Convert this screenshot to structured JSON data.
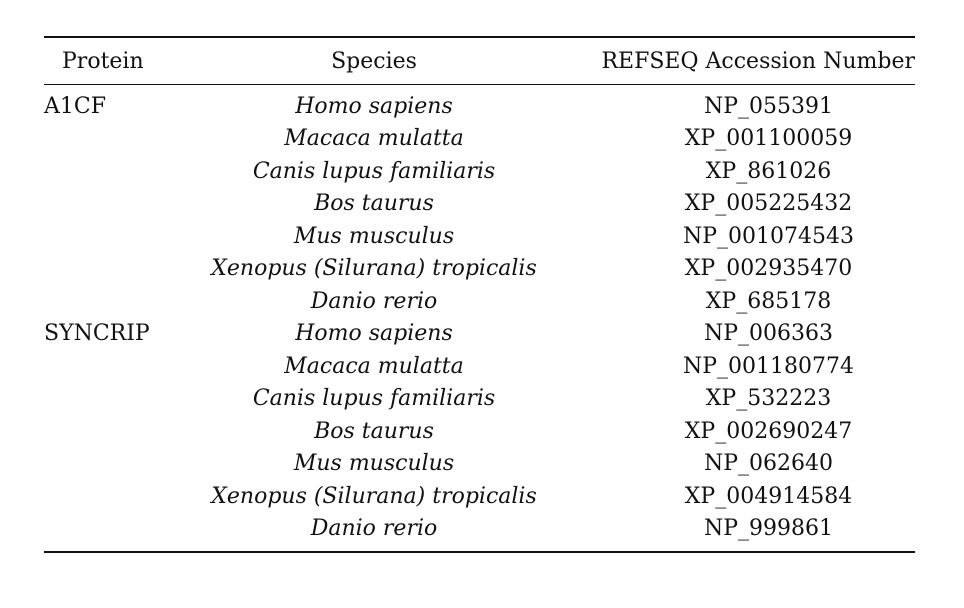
{
  "table": {
    "headers": [
      "Protein",
      "Species",
      "REFSEQ Accession Number"
    ],
    "rows": [
      {
        "protein": "A1CF",
        "species": "Homo sapiens",
        "accession": "NP_055391"
      },
      {
        "protein": "",
        "species": "Macaca mulatta",
        "accession": "XP_001100059"
      },
      {
        "protein": "",
        "species": "Canis lupus familiaris",
        "accession": "XP_861026"
      },
      {
        "protein": "",
        "species": "Bos taurus",
        "accession": "XP_005225432"
      },
      {
        "protein": "",
        "species": "Mus musculus",
        "accession": "NP_001074543"
      },
      {
        "protein": "",
        "species": "Xenopus (Silurana) tropicalis",
        "accession": "XP_002935470"
      },
      {
        "protein": "",
        "species": "Danio rerio",
        "accession": "XP_685178"
      },
      {
        "protein": "SYNCRIP",
        "species": "Homo sapiens",
        "accession": "NP_006363"
      },
      {
        "protein": "",
        "species": "Macaca mulatta",
        "accession": "NP_001180774"
      },
      {
        "protein": "",
        "species": "Canis lupus familiaris",
        "accession": "XP_532223"
      },
      {
        "protein": "",
        "species": "Bos taurus",
        "accession": "XP_002690247"
      },
      {
        "protein": "",
        "species": "Mus musculus",
        "accession": "NP_062640"
      },
      {
        "protein": "",
        "species": "Xenopus (Silurana) tropicalis",
        "accession": "XP_004914584"
      },
      {
        "protein": "",
        "species": "Danio rerio",
        "accession": "NP_999861"
      }
    ]
  }
}
